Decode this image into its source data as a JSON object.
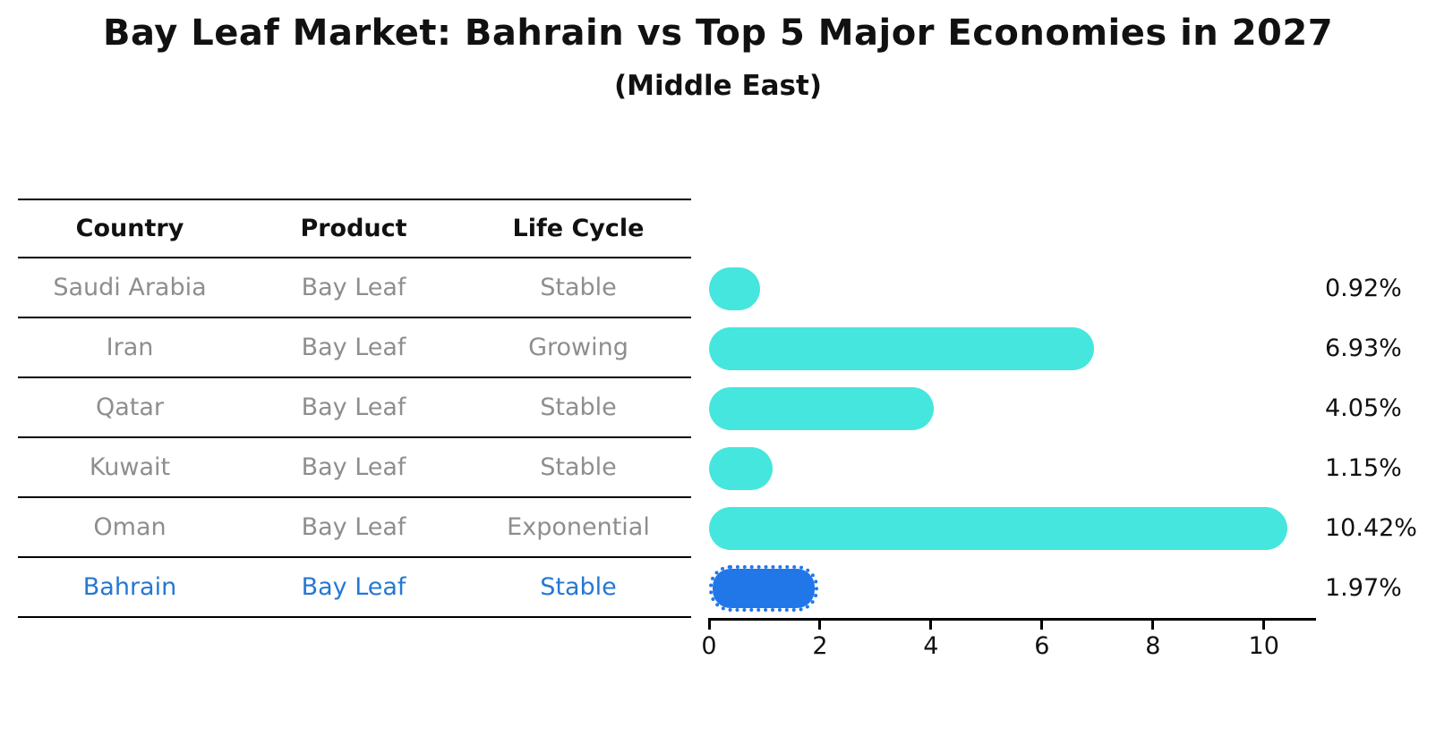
{
  "title": "Bay Leaf Market: Bahrain vs Top 5 Major Economies in 2027",
  "subtitle": "(Middle East)",
  "table": {
    "headers": [
      "Country",
      "Product",
      "Life Cycle"
    ],
    "rows": [
      {
        "country": "Saudi Arabia",
        "product": "Bay Leaf",
        "life_cycle": "Stable",
        "highlight": false
      },
      {
        "country": "Iran",
        "product": "Bay Leaf",
        "life_cycle": "Growing",
        "highlight": false
      },
      {
        "country": "Qatar",
        "product": "Bay Leaf",
        "life_cycle": "Stable",
        "highlight": false
      },
      {
        "country": "Kuwait",
        "product": "Bay Leaf",
        "life_cycle": "Stable",
        "highlight": false
      },
      {
        "country": "Oman",
        "product": "Bay Leaf",
        "life_cycle": "Exponential",
        "highlight": false
      },
      {
        "country": "Bahrain",
        "product": "Bay Leaf",
        "life_cycle": "Stable",
        "highlight": true
      }
    ]
  },
  "chart_data": {
    "type": "bar",
    "orientation": "horizontal",
    "title": "Bay Leaf Market: Bahrain vs Top 5 Major Economies in 2027",
    "subtitle": "(Middle East)",
    "categories": [
      "Saudi Arabia",
      "Iran",
      "Qatar",
      "Kuwait",
      "Oman",
      "Bahrain"
    ],
    "values": [
      0.92,
      6.93,
      4.05,
      1.15,
      10.42,
      1.97
    ],
    "value_labels": [
      "0.92%",
      "6.93%",
      "4.05%",
      "1.15%",
      "10.42%",
      "1.97%"
    ],
    "x_ticks": [
      0,
      2,
      4,
      6,
      8,
      10
    ],
    "xlim": [
      0,
      10.94
    ],
    "grid": false,
    "legend": false,
    "bar_color": "#45E6DE",
    "highlight_bar_color": "#2177e8",
    "highlight_text_color": "#2478d4",
    "highlight_index": 5
  }
}
